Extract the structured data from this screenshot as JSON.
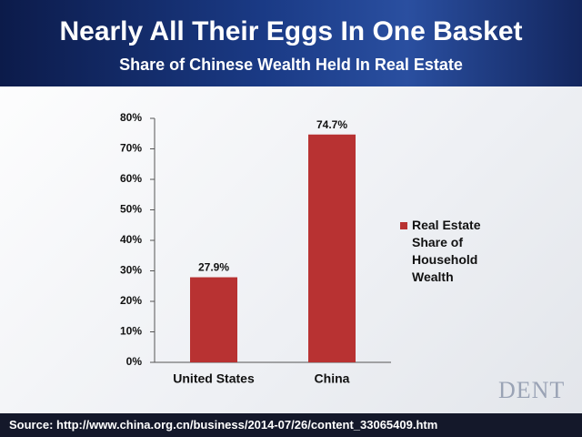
{
  "chart_data": {
    "type": "bar",
    "title": "Nearly All Their Eggs In One Basket",
    "subtitle": "Share of Chinese Wealth Held In Real Estate",
    "categories": [
      "United States",
      "China"
    ],
    "series": [
      {
        "name": "Real Estate Share of Household Wealth",
        "color": "#b83232",
        "values": [
          27.9,
          74.7
        ],
        "value_labels": [
          "27.9%",
          "74.7%"
        ]
      }
    ],
    "ylim": [
      0,
      80
    ],
    "yticks": [
      {
        "value": 0,
        "label": "0%"
      },
      {
        "value": 10,
        "label": "10%"
      },
      {
        "value": 20,
        "label": "20%"
      },
      {
        "value": 30,
        "label": "30%"
      },
      {
        "value": 40,
        "label": "40%"
      },
      {
        "value": 50,
        "label": "50%"
      },
      {
        "value": 60,
        "label": "60%"
      },
      {
        "value": 70,
        "label": "70%"
      },
      {
        "value": 80,
        "label": "80%"
      }
    ],
    "grid": false,
    "legend": "right",
    "source": "Source: http://www.china.org.cn/business/2014-07/26/content_33065409.htm",
    "logo": "DENT"
  }
}
